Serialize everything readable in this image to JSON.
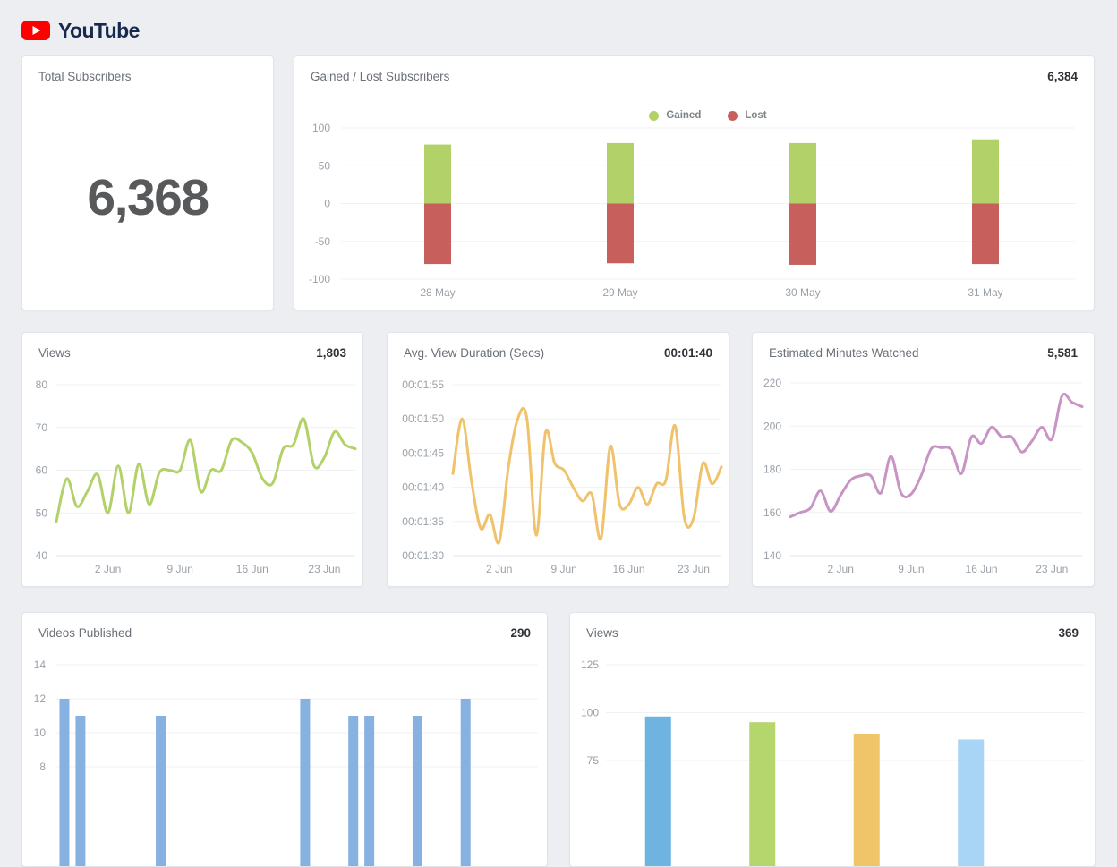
{
  "header": {
    "app_name": "YouTube",
    "brand_color": "#ff0000"
  },
  "cards": [
    {
      "id": "total_subscribers",
      "title": "Total Subscribers",
      "value": "6,368"
    },
    {
      "id": "gained_lost",
      "title": "Gained / Lost Subscribers",
      "value": "6,384"
    },
    {
      "id": "views_daily",
      "title": "Views",
      "value": "1,803"
    },
    {
      "id": "avg_view_duration",
      "title": "Avg. View Duration (Secs)",
      "value": "00:01:40"
    },
    {
      "id": "est_minutes_watched",
      "title": "Estimated Minutes Watched",
      "value": "5,581"
    },
    {
      "id": "videos_published",
      "title": "Videos Published",
      "value": "290"
    },
    {
      "id": "views_bottom",
      "title": "Views",
      "value": "369"
    }
  ],
  "chart_data": [
    {
      "id": "gained_lost",
      "type": "bar",
      "stacked": true,
      "title": "Gained / Lost Subscribers",
      "categories": [
        "28 May",
        "29 May",
        "30 May",
        "31 May"
      ],
      "series": [
        {
          "name": "Gained",
          "color": "#b3d169",
          "values": [
            78,
            80,
            80,
            85
          ]
        },
        {
          "name": "Lost",
          "color": "#c7605d",
          "values": [
            -80,
            -79,
            -81,
            -80
          ]
        }
      ],
      "ylim": [
        -100,
        100
      ],
      "yticks": [
        {
          "label": "100",
          "value": 100
        },
        {
          "label": "50",
          "value": 50
        },
        {
          "label": "0",
          "value": 0
        },
        {
          "label": "-50",
          "value": -50
        },
        {
          "label": "-100",
          "value": -100
        }
      ],
      "legend_position": "top",
      "grid": true
    },
    {
      "id": "views_daily",
      "type": "line",
      "title": "Views",
      "color": "#b3d169",
      "ylim": [
        40,
        80
      ],
      "yticks": [
        {
          "label": "80",
          "value": 80
        },
        {
          "label": "70",
          "value": 70
        },
        {
          "label": "60",
          "value": 60
        },
        {
          "label": "50",
          "value": 50
        },
        {
          "label": "40",
          "value": 40
        }
      ],
      "x_tick_labels": [
        {
          "index": 5,
          "label": "2 Jun"
        },
        {
          "index": 12,
          "label": "9 Jun"
        },
        {
          "index": 19,
          "label": "16 Jun"
        },
        {
          "index": 26,
          "label": "23 Jun"
        }
      ],
      "values": [
        48,
        58,
        51.5,
        55,
        59,
        50,
        61,
        50,
        61.5,
        52,
        59.5,
        60,
        60,
        67,
        55,
        60,
        60,
        67,
        66.5,
        64,
        58,
        57,
        65,
        66,
        72,
        61,
        63,
        69,
        66,
        65
      ]
    },
    {
      "id": "avg_view_duration",
      "type": "line",
      "title": "Avg. View Duration (Secs)",
      "color": "#f0c26c",
      "ylim": [
        90,
        115
      ],
      "yticks": [
        {
          "label": "00:01:55",
          "value": 115
        },
        {
          "label": "00:01:50",
          "value": 110
        },
        {
          "label": "00:01:45",
          "value": 105
        },
        {
          "label": "00:01:40",
          "value": 100
        },
        {
          "label": "00:01:35",
          "value": 95
        },
        {
          "label": "00:01:30",
          "value": 90
        }
      ],
      "x_tick_labels": [
        {
          "index": 5,
          "label": "2 Jun"
        },
        {
          "index": 12,
          "label": "9 Jun"
        },
        {
          "index": 19,
          "label": "16 Jun"
        },
        {
          "index": 26,
          "label": "23 Jun"
        }
      ],
      "values": [
        102,
        110,
        101,
        94,
        96,
        92,
        103,
        110,
        110,
        93,
        108,
        103.5,
        102.5,
        100,
        98,
        99,
        92.5,
        106,
        97.5,
        97.5,
        100,
        97.5,
        100.5,
        101,
        109,
        95.5,
        95.5,
        103.5,
        100.5,
        103
      ]
    },
    {
      "id": "est_minutes_watched",
      "type": "line",
      "title": "Estimated Minutes Watched",
      "color": "#c794c4",
      "ylim": [
        140,
        220
      ],
      "yticks": [
        {
          "label": "220",
          "value": 220
        },
        {
          "label": "200",
          "value": 200
        },
        {
          "label": "180",
          "value": 180
        },
        {
          "label": "160",
          "value": 160
        },
        {
          "label": "140",
          "value": 140
        }
      ],
      "x_tick_labels": [
        {
          "index": 5,
          "label": "2 Jun"
        },
        {
          "index": 12,
          "label": "9 Jun"
        },
        {
          "index": 19,
          "label": "16 Jun"
        },
        {
          "index": 26,
          "label": "23 Jun"
        }
      ],
      "values": [
        158,
        160,
        162,
        170,
        160.5,
        168,
        175,
        177,
        177,
        169,
        186,
        169,
        168.5,
        177,
        189.5,
        190,
        189,
        178,
        195,
        192,
        199.5,
        195,
        195,
        188,
        193,
        199.5,
        194,
        214,
        211,
        209
      ]
    },
    {
      "id": "videos_published",
      "type": "bar",
      "title": "Videos Published",
      "color": "#87b1e1",
      "slots": 30,
      "bars": [
        {
          "index": 0,
          "value": 12
        },
        {
          "index": 1,
          "value": 11
        },
        {
          "index": 6,
          "value": 11
        },
        {
          "index": 15,
          "value": 12
        },
        {
          "index": 18,
          "value": 11
        },
        {
          "index": 19,
          "value": 11
        },
        {
          "index": 22,
          "value": 11
        },
        {
          "index": 25,
          "value": 12
        }
      ],
      "yticks": [
        {
          "label": "14",
          "value": 14
        },
        {
          "label": "12",
          "value": 12
        },
        {
          "label": "10",
          "value": 10
        },
        {
          "label": "8",
          "value": 8
        }
      ],
      "x_tick_labels": []
    },
    {
      "id": "views_bottom",
      "type": "bar",
      "title": "Views",
      "slots": 4,
      "bars": [
        {
          "index": 0,
          "value": 98,
          "color": "#6fb3e0"
        },
        {
          "index": 1,
          "value": 95,
          "color": "#b5d56d"
        },
        {
          "index": 2,
          "value": 89,
          "color": "#f0c468"
        },
        {
          "index": 3,
          "value": 86,
          "color": "#a8d4f6"
        }
      ],
      "yticks": [
        {
          "label": "125",
          "value": 125
        },
        {
          "label": "100",
          "value": 100
        },
        {
          "label": "75",
          "value": 75
        }
      ],
      "x_tick_labels": []
    }
  ]
}
